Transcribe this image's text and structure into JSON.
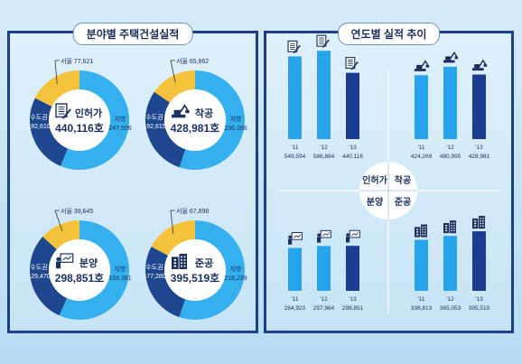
{
  "left_title": "분야별 주택건설실적",
  "right_title": "연도별 실적 추이",
  "colors": {
    "jibang": "#34b0ee",
    "sudo": "#1e478f",
    "seoul": "#f5c33b",
    "bar_light": "#28a4ec",
    "bar_dark": "#1b3c8f",
    "border": "#1b3f8a"
  },
  "chart_data": [
    {
      "type": "pie",
      "category": "인허가",
      "total_label": "440,116",
      "unit": "호",
      "icon": "permit-document-icon",
      "slices": [
        {
          "name": "지방",
          "value": 247506,
          "label": "247,506"
        },
        {
          "name": "수도권",
          "value": 192610,
          "label": "192,610"
        }
      ],
      "seoul": {
        "name": "서울",
        "value": 77621,
        "label": "77,621"
      }
    },
    {
      "type": "pie",
      "category": "착공",
      "total_label": "428,981",
      "unit": "호",
      "icon": "excavator-icon",
      "slices": [
        {
          "name": "지방",
          "value": 236366,
          "label": "236,366"
        },
        {
          "name": "수도권",
          "value": 192615,
          "label": "192,615"
        }
      ],
      "seoul": {
        "name": "서울",
        "value": 65862,
        "label": "65,862"
      }
    },
    {
      "type": "pie",
      "category": "분양",
      "total_label": "298,851",
      "unit": "호",
      "icon": "presenter-icon",
      "slices": [
        {
          "name": "지방",
          "value": 169381,
          "label": "169,381"
        },
        {
          "name": "수도권",
          "value": 129470,
          "label": "129,470"
        }
      ],
      "seoul": {
        "name": "서울",
        "value": 39645,
        "label": "39,645"
      }
    },
    {
      "type": "pie",
      "category": "준공",
      "total_label": "395,519",
      "unit": "호",
      "icon": "building-icon",
      "slices": [
        {
          "name": "지방",
          "value": 218239,
          "label": "218,239"
        },
        {
          "name": "수도권",
          "value": 177280,
          "label": "177,280"
        }
      ],
      "seoul": {
        "name": "서울",
        "value": 67898,
        "label": "67,898"
      }
    },
    {
      "type": "bar",
      "category": "인허가",
      "categories": [
        "'11",
        "'12",
        "'13"
      ],
      "values": [
        549594,
        586884,
        440116
      ],
      "value_labels": [
        "549,594",
        "586,884",
        "440,116"
      ],
      "icon": "permit-document-icon"
    },
    {
      "type": "bar",
      "category": "착공",
      "categories": [
        "'11",
        "'12",
        "'13"
      ],
      "values": [
        424269,
        480995,
        428981
      ],
      "value_labels": [
        "424,269",
        "480,995",
        "428,981"
      ],
      "icon": "excavator-icon"
    },
    {
      "type": "bar",
      "category": "분양",
      "categories": [
        "'11",
        "'12",
        "'13"
      ],
      "values": [
        284923,
        297964,
        298851
      ],
      "value_labels": [
        "284,923",
        "297,964",
        "298,851"
      ],
      "icon": "presenter-icon"
    },
    {
      "type": "bar",
      "category": "준공",
      "categories": [
        "'11",
        "'12",
        "'13"
      ],
      "values": [
        338813,
        365053,
        395519
      ],
      "value_labels": [
        "338,813",
        "365,053",
        "395,519"
      ],
      "icon": "building-icon"
    }
  ]
}
